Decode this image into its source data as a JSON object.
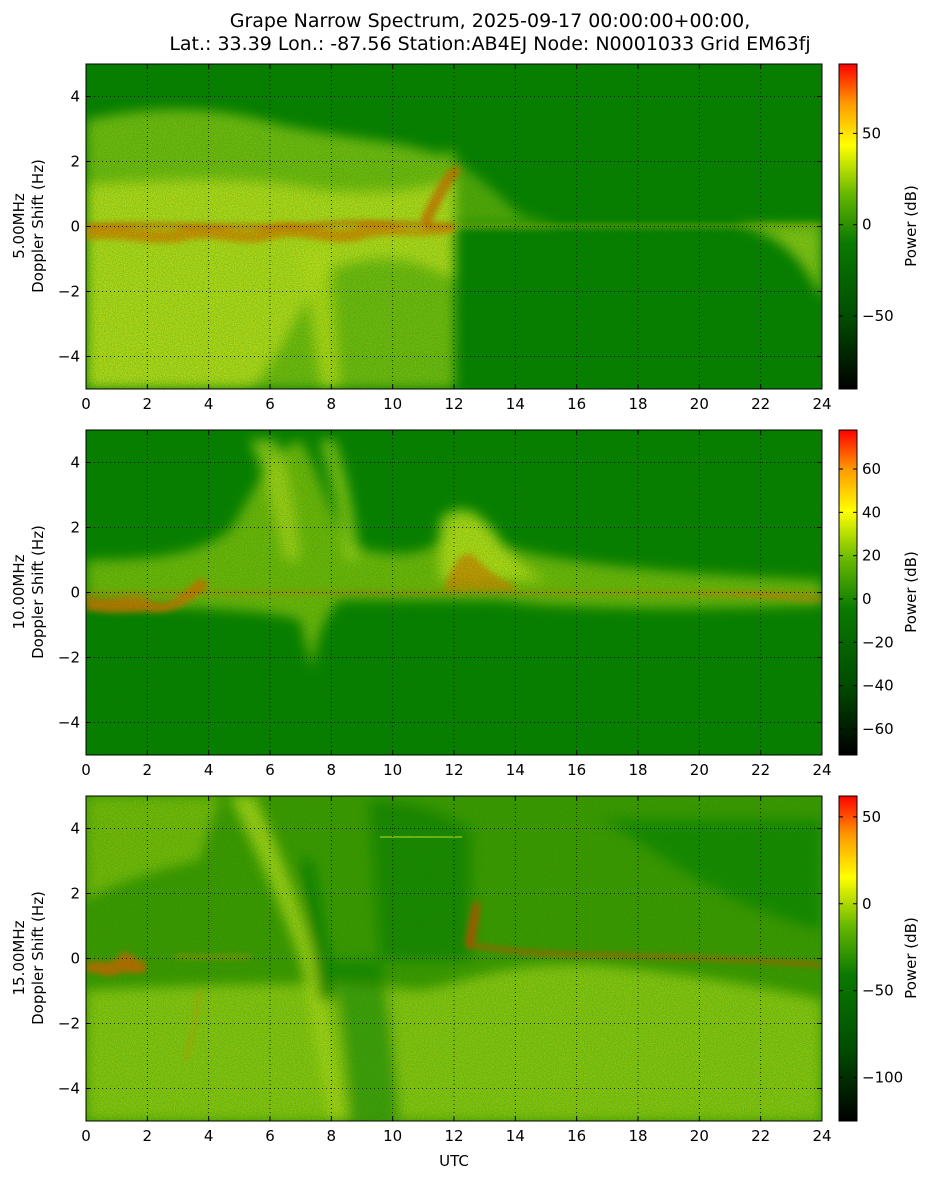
{
  "title_line1": "Grape Narrow Spectrum, 2025-09-17 00:00:00+00:00,",
  "title_line2": "Lat.: 33.39 Lon.: -87.56 Station:AB4EJ Node: N0001033 Grid EM63fj",
  "xlabel": "UTC",
  "colorbar_label": "Power (dB)",
  "colors": {
    "background_green": "#0a7a00",
    "signal_yellow": "#e6f01e",
    "signal_orange": "#ffb000",
    "signal_red": "#ff2a00",
    "colormap": [
      "#000000",
      "#006400",
      "#1a8a00",
      "#ffff00",
      "#ff0000"
    ]
  },
  "chart_data": [
    {
      "type": "heatmap",
      "panel": "5.00MHz",
      "ylabel_line1": "5.00MHz",
      "ylabel_line2": "Doppler Shift (Hz)",
      "xlim": [
        0,
        24
      ],
      "ylim": [
        -5,
        5
      ],
      "xticks": [
        0,
        2,
        4,
        6,
        8,
        10,
        12,
        14,
        16,
        18,
        20,
        22,
        24
      ],
      "yticks": [
        -4,
        -2,
        0,
        2,
        4
      ],
      "ytick_labels": [
        "−4",
        "−2",
        "0",
        "2",
        "4"
      ],
      "grid": true,
      "colorbar": {
        "range": [
          -90,
          88
        ],
        "ticks": [
          -50,
          0,
          50
        ],
        "tick_labels": [
          "−50",
          "0",
          "50"
        ]
      }
    },
    {
      "type": "heatmap",
      "panel": "10.00MHz",
      "ylabel_line1": "10.00MHz",
      "ylabel_line2": "Doppler Shift (Hz)",
      "xlim": [
        0,
        24
      ],
      "ylim": [
        -5,
        5
      ],
      "xticks": [
        0,
        2,
        4,
        6,
        8,
        10,
        12,
        14,
        16,
        18,
        20,
        22,
        24
      ],
      "yticks": [
        -4,
        -2,
        0,
        2,
        4
      ],
      "ytick_labels": [
        "−4",
        "−2",
        "0",
        "2",
        "4"
      ],
      "grid": true,
      "colorbar": {
        "range": [
          -72,
          78
        ],
        "ticks": [
          -60,
          -40,
          -20,
          0,
          20,
          40,
          60
        ],
        "tick_labels": [
          "−60",
          "−40",
          "−20",
          "0",
          "20",
          "40",
          "60"
        ]
      }
    },
    {
      "type": "heatmap",
      "panel": "15.00MHz",
      "ylabel_line1": "15.00MHz",
      "ylabel_line2": "Doppler Shift (Hz)",
      "xlim": [
        0,
        24
      ],
      "ylim": [
        -5,
        5
      ],
      "xticks": [
        0,
        2,
        4,
        6,
        8,
        10,
        12,
        14,
        16,
        18,
        20,
        22,
        24
      ],
      "yticks": [
        -4,
        -2,
        0,
        2,
        4
      ],
      "ytick_labels": [
        "−4",
        "−2",
        "0",
        "2",
        "4"
      ],
      "grid": true,
      "colorbar": {
        "range": [
          -125,
          62
        ],
        "ticks": [
          -100,
          -50,
          0,
          50
        ],
        "tick_labels": [
          "−100",
          "−50",
          "0",
          "50"
        ]
      }
    }
  ]
}
